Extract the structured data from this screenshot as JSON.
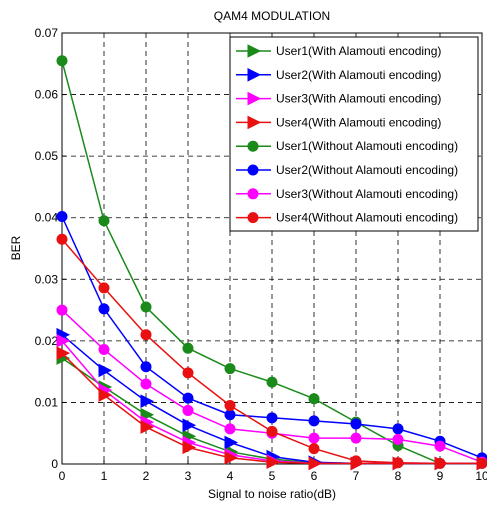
{
  "chart_data": {
    "type": "line",
    "title": "QAM4 MODULATION",
    "xlabel": "Signal to noise ratio(dB)",
    "ylabel": "BER",
    "xlim": [
      0,
      10
    ],
    "ylim": [
      0,
      0.07
    ],
    "x_ticks": [
      "0",
      "1",
      "2",
      "3",
      "4",
      "5",
      "6",
      "7",
      "8",
      "9",
      "10"
    ],
    "y_ticks": [
      "0",
      "0.01",
      "0.02",
      "0.03",
      "0.04",
      "0.05",
      "0.06",
      "0.07"
    ],
    "grid": true,
    "legend_position": "top-right",
    "x": [
      0,
      1,
      2,
      3,
      4,
      5,
      6,
      7,
      8,
      9,
      10
    ],
    "series": [
      {
        "name": "User1(With Alamouti encoding)",
        "color": "#1a8a1a",
        "marker": "triangle-right",
        "values": [
          0.0655,
          0.0395,
          0.0255,
          0.0188,
          0.0155,
          0.0133,
          0.0106,
          0.0068,
          0.003,
          0.0001,
          0.0001
        ]
      },
      {
        "name": "User2(With Alamouti encoding)",
        "color": "#0000ff",
        "marker": "triangle-right",
        "values": [
          0.0402,
          0.0252,
          0.0158,
          0.0107,
          0.008,
          0.0075,
          0.007,
          0.0065,
          0.0057,
          0.0037,
          0.001
        ]
      },
      {
        "name": "User3(With Alamouti encoding)",
        "color": "#ff00ff",
        "marker": "triangle-right",
        "values": [
          0.025,
          0.0186,
          0.013,
          0.0087,
          0.0057,
          0.005,
          0.0042,
          0.0042,
          0.004,
          0.0029,
          0.0003
        ]
      },
      {
        "name": "User4(With Alamouti encoding)",
        "color": "#e81010",
        "marker": "triangle-right",
        "values": [
          0.0365,
          0.0286,
          0.021,
          0.0148,
          0.0095,
          0.0053,
          0.0025,
          0.0005,
          0.0002,
          0.0001,
          0.0001
        ]
      },
      {
        "name": "User1(Without Alamouti encoding)",
        "color": "#1a8a1a",
        "marker": "circle",
        "values": [
          0.0655,
          0.0395,
          0.0255,
          0.0188,
          0.0155,
          0.0133,
          0.0106,
          0.0068,
          0.003,
          0.0001,
          0.0001
        ]
      },
      {
        "name": "User2(Without Alamouti encoding)",
        "color": "#0000ff",
        "marker": "circle",
        "values": [
          0.0402,
          0.0252,
          0.0158,
          0.0107,
          0.008,
          0.0075,
          0.007,
          0.0065,
          0.0057,
          0.0037,
          0.001
        ]
      },
      {
        "name": "User3(Without Alamouti encoding)",
        "color": "#ff00ff",
        "marker": "circle",
        "values": [
          0.025,
          0.0186,
          0.013,
          0.0087,
          0.0057,
          0.005,
          0.0042,
          0.0042,
          0.004,
          0.0029,
          0.0003
        ]
      },
      {
        "name": "User4(Without Alamouti encoding)",
        "color": "#e81010",
        "marker": "circle",
        "values": [
          0.0365,
          0.0286,
          0.021,
          0.0148,
          0.0095,
          0.0053,
          0.0025,
          0.0005,
          0.0002,
          0.0001,
          0.0001
        ]
      }
    ],
    "series_visible_values_with_encoding": [
      [
        0.0172,
        0.0125,
        0.008,
        0.0045,
        0.002,
        0.0008,
        0.0002,
        0.0001,
        0.0001,
        0.0001,
        0.0001
      ],
      [
        0.021,
        0.0152,
        0.0102,
        0.0063,
        0.0035,
        0.0012,
        0.0003,
        0.0001,
        0.0001,
        0.0001,
        0.0001
      ],
      [
        0.02,
        0.012,
        0.0068,
        0.0035,
        0.0015,
        0.0005,
        0.0001,
        0.0001,
        0.0001,
        0.0001,
        0.0001
      ],
      [
        0.018,
        0.0112,
        0.006,
        0.0027,
        0.001,
        0.0003,
        0.0001,
        0.0001,
        0.0001,
        0.0001,
        0.0001
      ]
    ]
  }
}
